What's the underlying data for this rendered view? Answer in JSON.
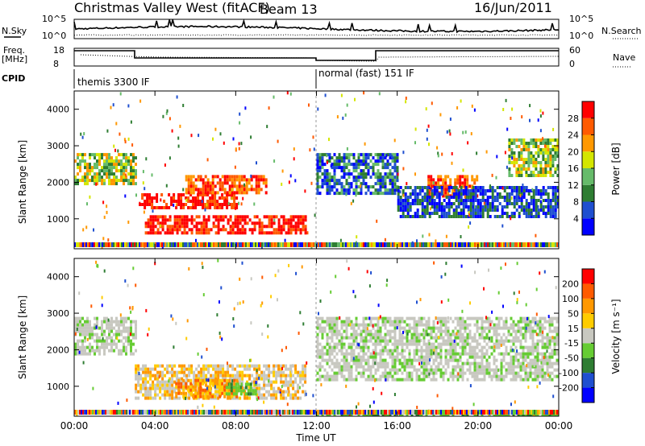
{
  "header": {
    "station": "Christmas Valley West (fitACF)",
    "beam": "Beam 13",
    "date": "16/Jun/2011"
  },
  "top_panels": {
    "nsky_label": "N.Sky",
    "nsky_ticks": [
      "10^5",
      "10^0"
    ],
    "nsearch_label": "N.Search",
    "nsearch_ticks": [
      "10^5",
      "10^0"
    ],
    "freq_label": "Freq.",
    "freq_unit": "[MHz]",
    "freq_ticks": [
      "18",
      "8"
    ],
    "nave_label": "Nave",
    "nave_ticks": [
      "60",
      "0"
    ],
    "cpid_label": "CPID",
    "cpid_segments": [
      {
        "name": "themis 3300 IF",
        "start_hour": 0
      },
      {
        "name": "normal (fast) 151 IF",
        "start_hour": 12
      }
    ]
  },
  "chart_data": [
    {
      "type": "heatmap",
      "title": "Power",
      "ylabel": "Slant Range [km]",
      "ylim": [
        180,
        4500
      ],
      "yticks": [
        "1000",
        "2000",
        "3000",
        "4000"
      ],
      "xlim": [
        0,
        24
      ],
      "colorbar": {
        "label": "Power [dB]",
        "ticks": [
          "4",
          "8",
          "12",
          "16",
          "20",
          "24",
          "28"
        ],
        "colors": [
          "#0000ff",
          "#1f4fd0",
          "#2e7d32",
          "#66bb6a",
          "#d4e600",
          "#ff9800",
          "#ff5a00",
          "#ff0000"
        ]
      },
      "bands": [
        {
          "hours": [
            0.0,
            3.0
          ],
          "range_km": [
            2000,
            2800
          ],
          "level": "green-yellow"
        },
        {
          "hours": [
            3.2,
            8.0
          ],
          "range_km": [
            1300,
            1700
          ],
          "level": "red"
        },
        {
          "hours": [
            3.5,
            11.5
          ],
          "range_km": [
            650,
            1100
          ],
          "level": "red"
        },
        {
          "hours": [
            5.5,
            9.5
          ],
          "range_km": [
            1700,
            2200
          ],
          "level": "orange-red"
        },
        {
          "hours": [
            12.0,
            16.0
          ],
          "range_km": [
            1700,
            2800
          ],
          "level": "green-blue"
        },
        {
          "hours": [
            17.5,
            20.0
          ],
          "range_km": [
            1600,
            2200
          ],
          "level": "red-orange"
        },
        {
          "hours": [
            16.0,
            24.0
          ],
          "range_km": [
            1100,
            1900
          ],
          "level": "blue-green"
        },
        {
          "hours": [
            21.5,
            24.0
          ],
          "range_km": [
            2200,
            3200
          ],
          "level": "orange-green"
        }
      ]
    },
    {
      "type": "heatmap",
      "title": "Velocity",
      "ylabel": "Slant Range [km]",
      "ylim": [
        180,
        4500
      ],
      "yticks": [
        "1000",
        "2000",
        "3000",
        "4000"
      ],
      "xlim": [
        0,
        24
      ],
      "xticks": [
        "00:00",
        "04:00",
        "08:00",
        "12:00",
        "16:00",
        "20:00",
        "00:00"
      ],
      "xlabel": "Time UT",
      "colorbar": {
        "label": "Velocity [m s⁻¹]",
        "ticks": [
          "200",
          "100",
          "50",
          "15",
          "-15",
          "-50",
          "-100",
          "-200"
        ],
        "colors": [
          "#0000ff",
          "#1f4fd0",
          "#2e7d32",
          "#66cc33",
          "#c8c8c0",
          "#ffcc00",
          "#ff9800",
          "#ff5a00",
          "#ff0000"
        ]
      },
      "bands": [
        {
          "hours": [
            0.0,
            3.0
          ],
          "range_km": [
            1900,
            2900
          ],
          "level": "grey"
        },
        {
          "hours": [
            3.0,
            11.5
          ],
          "range_km": [
            700,
            1600
          ],
          "level": "grey-orange"
        },
        {
          "hours": [
            5.0,
            8.0
          ],
          "range_km": [
            700,
            1200
          ],
          "level": "orange"
        },
        {
          "hours": [
            7.5,
            9.0
          ],
          "range_km": [
            800,
            1100
          ],
          "level": "green"
        },
        {
          "hours": [
            12.0,
            24.0
          ],
          "range_km": [
            1200,
            2900
          ],
          "level": "grey"
        },
        {
          "hours": [
            12.0,
            24.0
          ],
          "range_km": [
            180,
            350
          ],
          "level": "green"
        }
      ]
    }
  ]
}
